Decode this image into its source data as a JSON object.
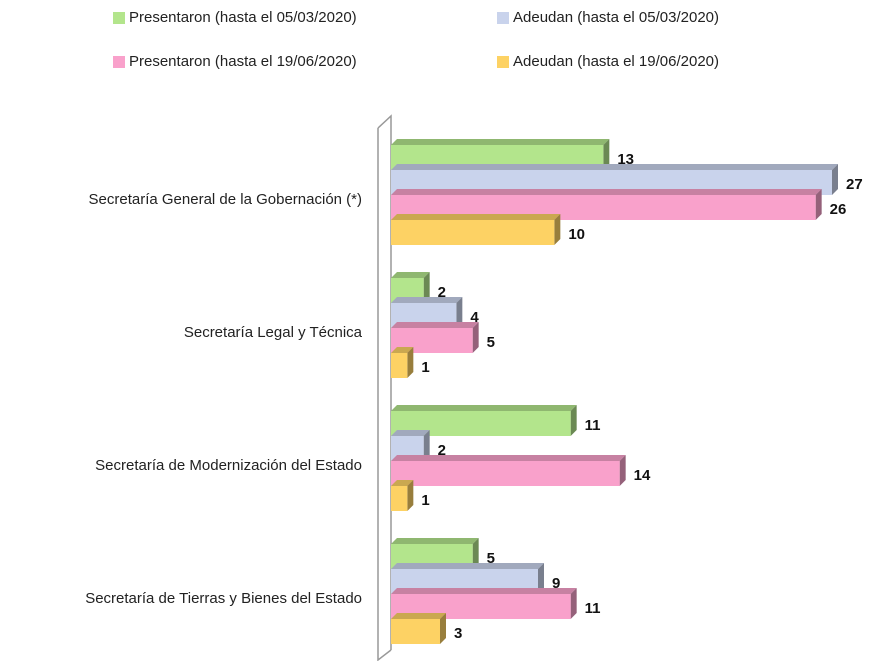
{
  "chart_data": {
    "type": "bar",
    "orientation": "horizontal",
    "categories": [
      "Secretaría General de la Gobernación (*)",
      "Secretaría Legal y Técnica",
      "Secretaría de Modernización del Estado",
      "Secretaría de Tierras y Bienes del Estado"
    ],
    "series": [
      {
        "name": "Presentaron (hasta el 05/03/2020)",
        "color": "#b3e58c",
        "values": [
          13,
          2,
          11,
          5
        ]
      },
      {
        "name": "Adeudan (hasta el 05/03/2020)",
        "color": "#c9d3ec",
        "values": [
          27,
          4,
          2,
          9
        ]
      },
      {
        "name": "Presentaron (hasta el 19/06/2020)",
        "color": "#f9a1cb",
        "values": [
          26,
          5,
          14,
          11
        ]
      },
      {
        "name": "Adeudan (hasta el 19/06/2020)",
        "color": "#fdd264",
        "values": [
          10,
          1,
          1,
          3
        ]
      }
    ],
    "legend": "top"
  }
}
